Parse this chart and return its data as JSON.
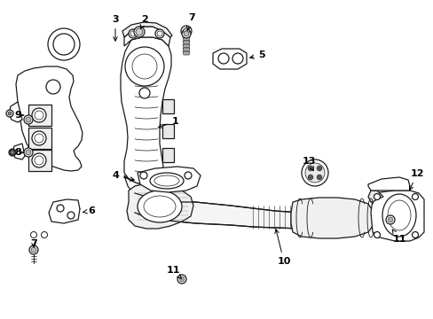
{
  "fig_width": 4.89,
  "fig_height": 3.6,
  "dpi": 100,
  "background_color": "#ffffff",
  "line_color": "#1a1a1a",
  "lw": 0.9
}
